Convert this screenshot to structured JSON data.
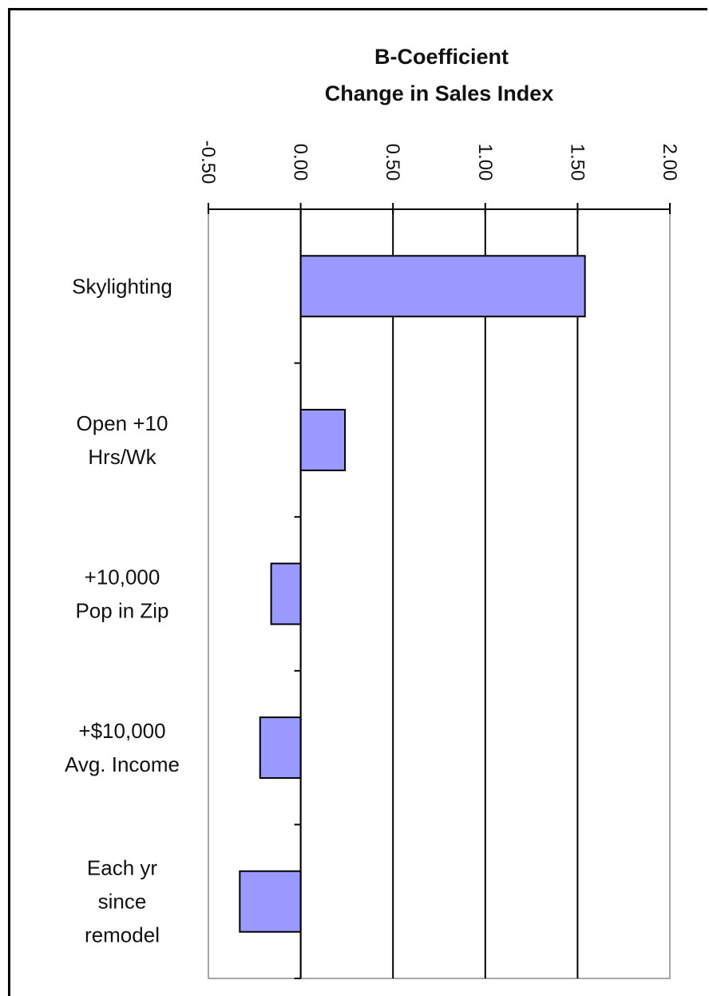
{
  "chart_data": {
    "type": "bar",
    "orientation": "horizontal",
    "title": "B-Coefficient",
    "subtitle": "Change in Sales Index",
    "xlim": [
      -0.5,
      2.0
    ],
    "tick_labels": [
      "-0.50",
      "0.00",
      "0.50",
      "1.00",
      "1.50",
      "2.00"
    ],
    "tick_values": [
      -0.5,
      0.0,
      0.5,
      1.0,
      1.5,
      2.0
    ],
    "categories": [
      [
        "Skylighting"
      ],
      [
        "Open +10",
        "Hrs/Wk"
      ],
      [
        "+10,000",
        "Pop in Zip"
      ],
      [
        "+$10,000",
        "Avg. Income"
      ],
      [
        "Each yr",
        "since",
        "remodel"
      ]
    ],
    "values": [
      1.54,
      0.24,
      -0.16,
      -0.22,
      -0.33
    ],
    "bar_color": "#9999ff",
    "grid": "vertical major gridlines",
    "legend": "none"
  }
}
